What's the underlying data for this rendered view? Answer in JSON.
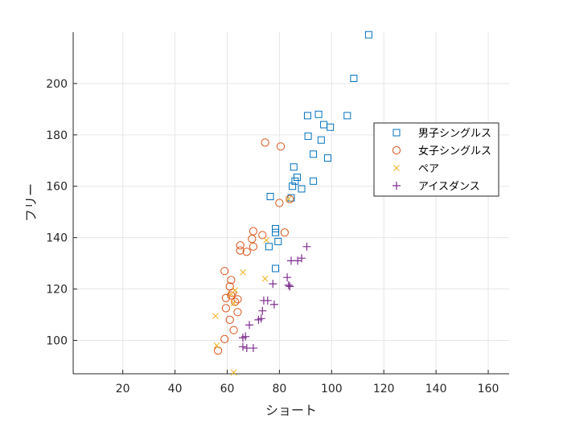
{
  "chart_data": {
    "type": "scatter",
    "xlabel": "ショート",
    "ylabel": "フリー",
    "xlim": [
      1,
      168
    ],
    "ylim": [
      87,
      220
    ],
    "xticks": [
      20,
      40,
      60,
      80,
      100,
      120,
      140,
      160
    ],
    "yticks": [
      100,
      120,
      140,
      160,
      180,
      200
    ],
    "grid": true,
    "legend_position": "right",
    "series": [
      {
        "name": "男子シングルス",
        "marker": "square",
        "color": "#0072BD",
        "points": [
          [
            114.2,
            219.0
          ],
          [
            108.5,
            202.0
          ],
          [
            106.0,
            187.5
          ],
          [
            95.0,
            188.0
          ],
          [
            90.8,
            187.5
          ],
          [
            97.0,
            184.0
          ],
          [
            99.5,
            183.0
          ],
          [
            91.0,
            179.5
          ],
          [
            96.0,
            178.0
          ],
          [
            93.0,
            172.5
          ],
          [
            98.5,
            171.0
          ],
          [
            85.5,
            167.5
          ],
          [
            86.8,
            163.5
          ],
          [
            86.0,
            162.0
          ],
          [
            93.0,
            162.0
          ],
          [
            85.0,
            160.0
          ],
          [
            88.5,
            159.0
          ],
          [
            76.5,
            156.0
          ],
          [
            84.5,
            155.5
          ],
          [
            78.5,
            143.5
          ],
          [
            78.5,
            142.0
          ],
          [
            79.5,
            138.5
          ],
          [
            76.0,
            136.5
          ],
          [
            78.5,
            128.0
          ]
        ]
      },
      {
        "name": "女子シングルス",
        "marker": "circle",
        "color": "#D95319",
        "points": [
          [
            74.5,
            177.0
          ],
          [
            80.5,
            175.5
          ],
          [
            84.0,
            155.0
          ],
          [
            80.0,
            153.5
          ],
          [
            70.0,
            142.5
          ],
          [
            82.0,
            142.0
          ],
          [
            73.5,
            141.0
          ],
          [
            69.5,
            139.5
          ],
          [
            65.0,
            137.0
          ],
          [
            70.0,
            136.5
          ],
          [
            65.0,
            135.0
          ],
          [
            67.5,
            134.5
          ],
          [
            59.0,
            127.0
          ],
          [
            61.5,
            123.5
          ],
          [
            61.0,
            121.0
          ],
          [
            62.0,
            118.5
          ],
          [
            61.5,
            117.5
          ],
          [
            59.5,
            116.5
          ],
          [
            64.0,
            116.0
          ],
          [
            63.0,
            115.0
          ],
          [
            59.5,
            112.5
          ],
          [
            64.0,
            111.0
          ],
          [
            61.0,
            108.0
          ],
          [
            62.5,
            104.0
          ],
          [
            59.0,
            100.5
          ],
          [
            56.5,
            96.0
          ]
        ]
      },
      {
        "name": "ペア",
        "marker": "x",
        "color": "#EDB120",
        "points": [
          [
            83.5,
            155.0
          ],
          [
            75.0,
            139.0
          ],
          [
            66.0,
            126.5
          ],
          [
            74.5,
            124.0
          ],
          [
            63.0,
            119.5
          ],
          [
            61.5,
            118.0
          ],
          [
            62.5,
            114.5
          ],
          [
            55.5,
            109.5
          ],
          [
            56.0,
            98.0
          ],
          [
            62.5,
            87.5
          ]
        ]
      },
      {
        "name": "アイスダンス",
        "marker": "plus",
        "color": "#7E2F8E",
        "points": [
          [
            90.5,
            136.5
          ],
          [
            88.5,
            132.0
          ],
          [
            87.0,
            131.0
          ],
          [
            84.5,
            131.0
          ],
          [
            83.0,
            124.5
          ],
          [
            83.5,
            121.5
          ],
          [
            84.0,
            121.0
          ],
          [
            77.5,
            122.0
          ],
          [
            75.5,
            115.5
          ],
          [
            74.0,
            115.5
          ],
          [
            78.0,
            114.0
          ],
          [
            73.5,
            111.5
          ],
          [
            73.0,
            108.5
          ],
          [
            72.0,
            108.0
          ],
          [
            68.5,
            106.0
          ],
          [
            67.0,
            101.5
          ],
          [
            66.0,
            101.0
          ],
          [
            66.0,
            97.5
          ],
          [
            67.5,
            97.0
          ],
          [
            70.0,
            97.0
          ]
        ]
      }
    ]
  }
}
